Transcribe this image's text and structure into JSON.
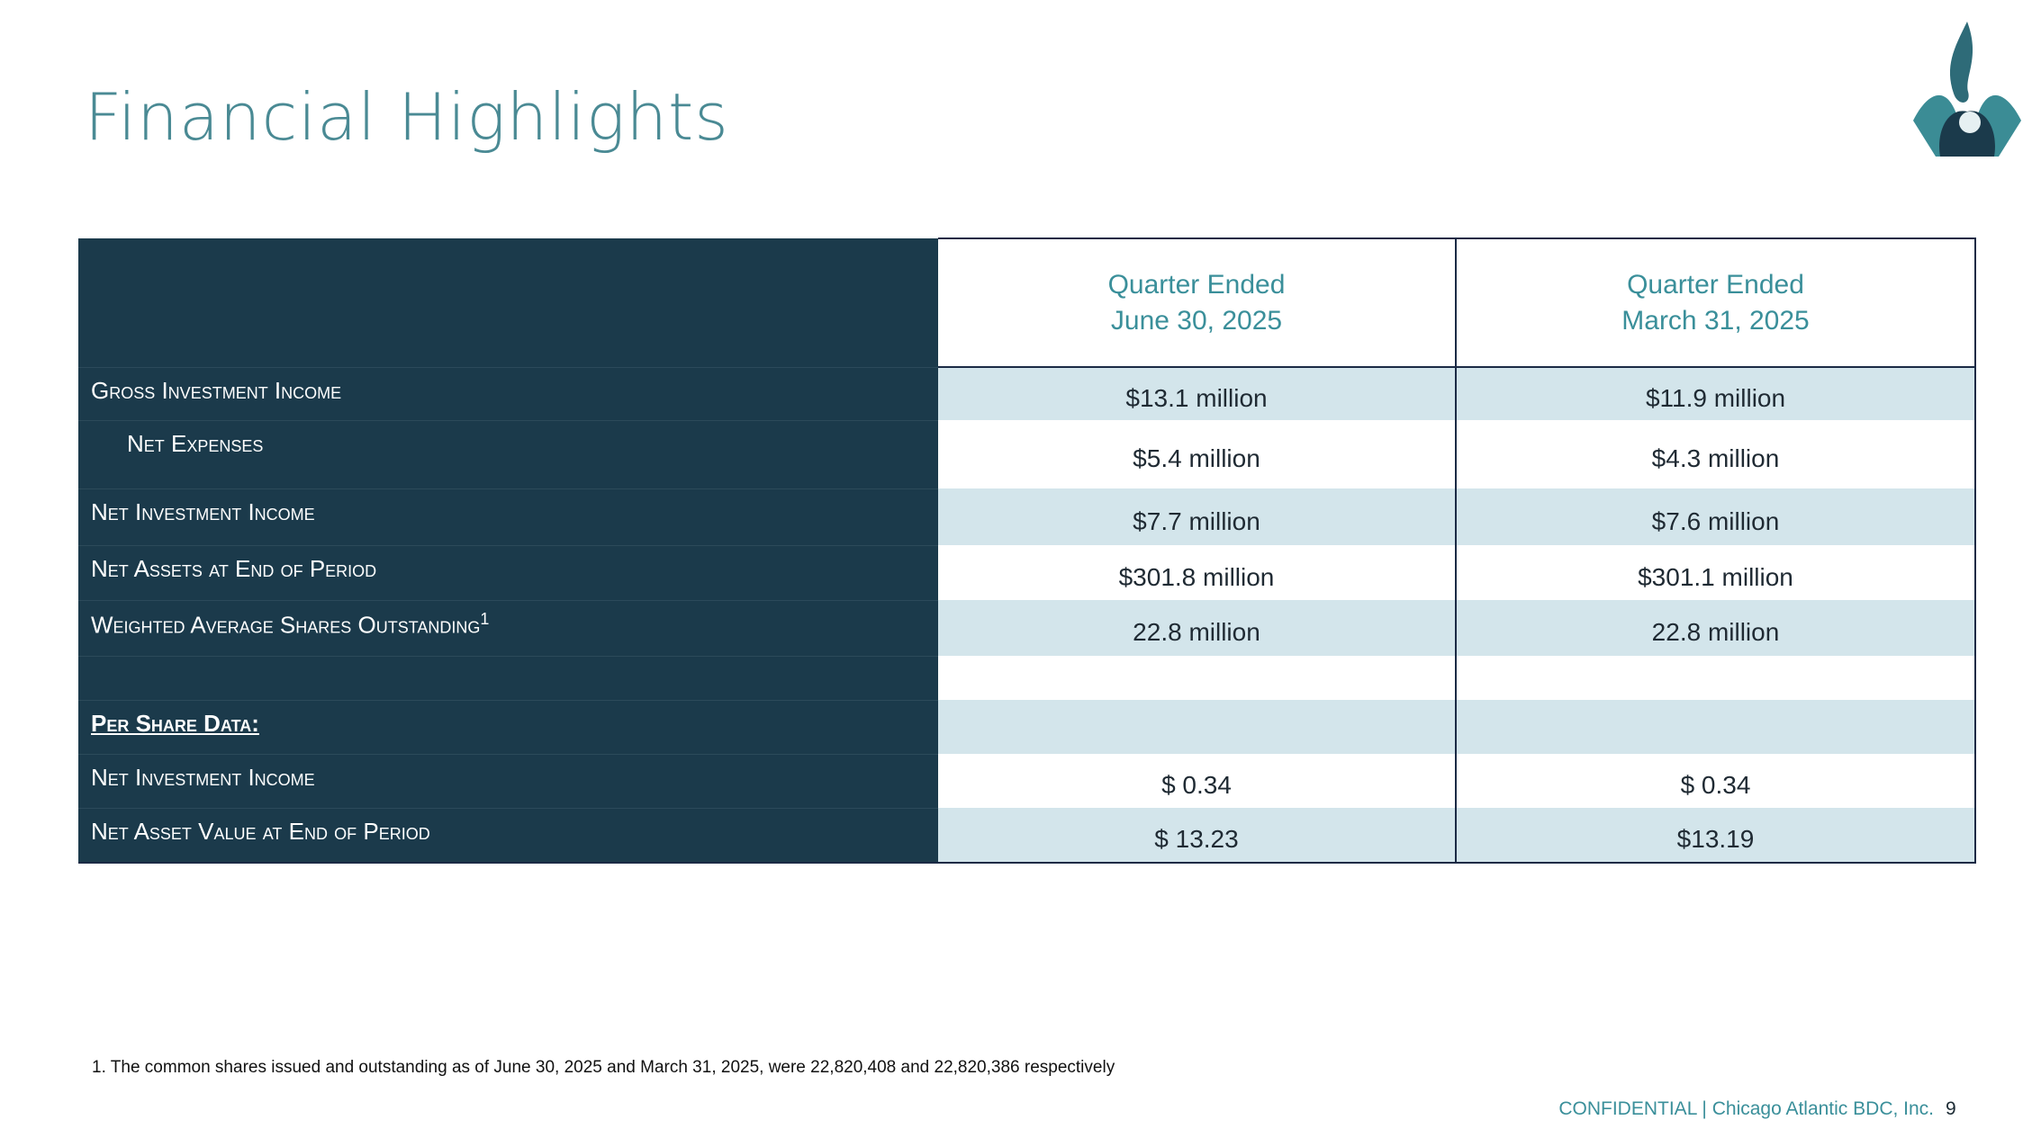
{
  "header": {
    "title": "Financial Highlights"
  },
  "table": {
    "columns": [
      [
        "Quarter Ended",
        "June 30, 2025"
      ],
      [
        "Quarter Ended",
        "March 31, 2025"
      ]
    ],
    "rows": [
      {
        "label": "Gross Investment Income",
        "values": [
          "$13.1 million",
          "$11.9 million"
        ]
      },
      {
        "label": "Net Expenses",
        "values": [
          "$5.4 million",
          "$4.3 million"
        ]
      },
      {
        "label": "Net Investment Income",
        "values": [
          "$7.7 million",
          "$7.6 million"
        ]
      },
      {
        "label": "Net Assets at End of Period",
        "values": [
          "$301.8 million",
          "$301.1 million"
        ]
      },
      {
        "label": "Weighted Average Shares Outstanding",
        "note": "1",
        "values": [
          "22.8 million",
          "22.8 million"
        ]
      }
    ],
    "per_share": {
      "label": "Per Share Data:",
      "rows": [
        {
          "label": "Net Investment Income",
          "values": [
            "$ 0.34",
            "$ 0.34"
          ]
        },
        {
          "label": "Net Asset Value at End of Period",
          "values": [
            "$ 13.23",
            "$13.19"
          ]
        }
      ]
    }
  },
  "footnote": "1. The common shares issued and outstanding as of June 30, 2025 and March 31, 2025, were 22,820,408 and 22,820,386 respectively",
  "footer": {
    "text": "CONFIDENTIAL | Chicago Atlantic BDC, Inc.",
    "page": "9"
  }
}
